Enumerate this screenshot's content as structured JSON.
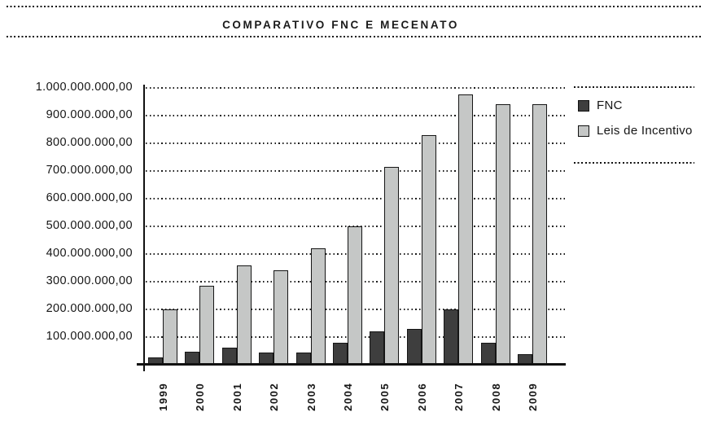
{
  "title_block": {
    "title": "COMPARATIVO FNC E MECENATO"
  },
  "chart_data": {
    "type": "bar",
    "title": "COMPARATIVO FNC E MECENATO",
    "categories": [
      "1999",
      "2000",
      "2001",
      "2002",
      "2003",
      "2004",
      "2005",
      "2006",
      "2007",
      "2008",
      "2009"
    ],
    "series": [
      {
        "name": "FNC",
        "color": "#3e3e3e",
        "values": [
          25000000,
          47000000,
          62000000,
          43000000,
          43000000,
          80000000,
          122000000,
          130000000,
          200000000,
          78000000,
          38000000
        ]
      },
      {
        "name": "Leis de Incentivo",
        "color": "#c5c7c6",
        "values": [
          200000000,
          285000000,
          360000000,
          340000000,
          420000000,
          500000000,
          715000000,
          830000000,
          975000000,
          940000000,
          940000000
        ]
      }
    ],
    "ylim": [
      0,
      1000000000
    ],
    "y_tick_interval": 100000000,
    "y_tick_labels_top_to_bottom": [
      "1.000.000.000,00",
      "900.000.000,00",
      "800.000.000,00",
      "700.000.000,00",
      "600.000.000,00",
      "500.000.000,00",
      "400.000.000,00",
      "300.000.000,00",
      "200.000.000,00",
      "100.000.000,00"
    ],
    "grid": "dotted-horizontal",
    "legend_position": "right",
    "x_tick_rotation_degrees": -90
  },
  "style": {
    "bar_border_color": "#161616",
    "axis_color": "#111111",
    "dotted_rule_color": "#101010",
    "background": "#ffffff"
  }
}
